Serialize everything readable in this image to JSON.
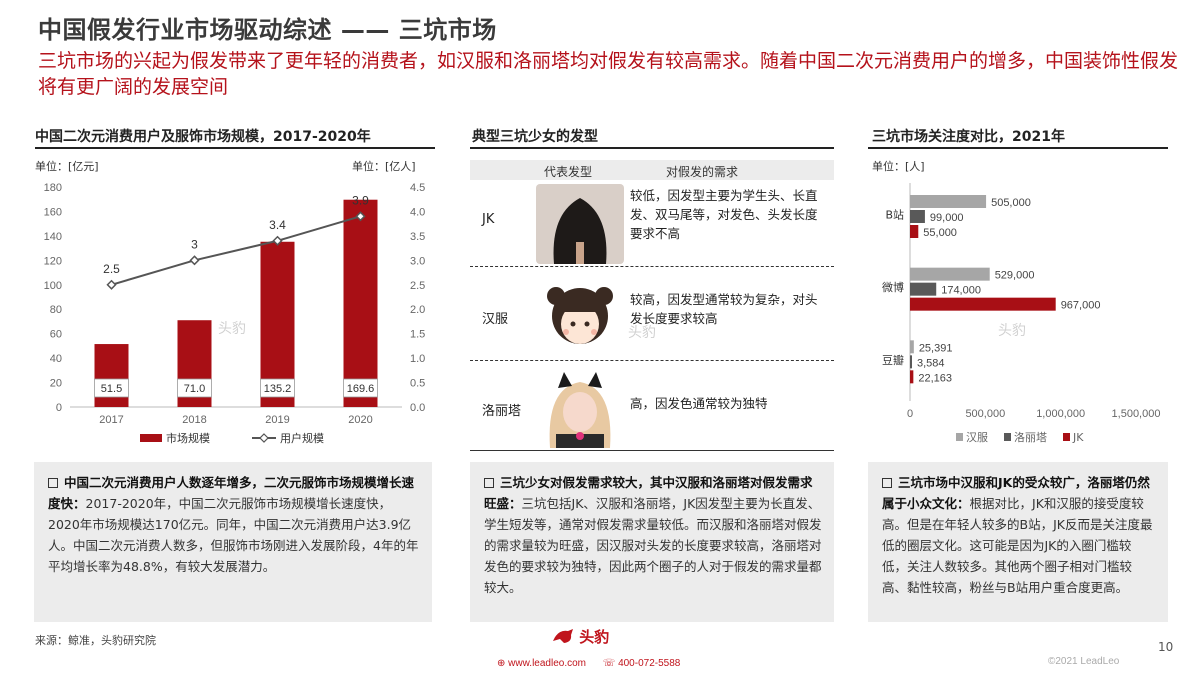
{
  "header": {
    "title": "中国假发行业市场驱动综述 —— 三坑市场",
    "subtitle": "三坑市场的兴起为假发带来了更年轻的消费者，如汉服和洛丽塔均对假发有较高需求。随着中国二次元消费用户的增多，中国装饰性假发将有更广阔的发展空间"
  },
  "left": {
    "section_title": "中国二次元消费用户及服饰市场规模，2017-2020年",
    "unit_left": "单位：[亿元]",
    "unit_right": "单位：[亿人]",
    "note_bold": "中国二次元消费用户人数逐年增多，二次元服饰市场规模增长速度快：",
    "note_text": "2017-2020年，中国二次元服饰市场规模增长速度快，2020年市场规模达170亿元。同年，中国二次元消费用户达3.9亿人。中国二次元消费人数多，但服饰市场刚进入发展阶段，4年的年平均增长率为48.8%，有较大发展潜力。"
  },
  "middle": {
    "section_title": "典型三坑少女的发型",
    "col_hair": "代表发型",
    "col_need": "对假发的需求",
    "rows": [
      {
        "type": "JK",
        "desc": "较低，因发型主要为学生头、长直发、双马尾等，对发色、头发长度要求不高"
      },
      {
        "type": "汉服",
        "desc": "较高，因发型通常较为复杂，对头发长度要求较高"
      },
      {
        "type": "洛丽塔",
        "desc": "高，因发色通常较为独特"
      }
    ],
    "note_bold": "三坑少女对假发需求较大，其中汉服和洛丽塔对假发需求旺盛：",
    "note_text": "三坑包括JK、汉服和洛丽塔，JK因发型主要为长直发、学生短发等，通常对假发需求量较低。而汉服和洛丽塔对假发的需求量较为旺盛，因汉服对头发的长度要求较高，洛丽塔对发色的要求较为独特，因此两个圈子的人对于假发的需求量都较大。"
  },
  "right": {
    "section_title": "三坑市场关注度对比，2021年",
    "unit": "单位：[人]",
    "note_bold": "三坑市场中汉服和JK的受众较广，洛丽塔仍然属于小众文化：",
    "note_text": "根据对比，JK和汉服的接受度较高。但是在年轻人较多的B站，JK反而是关注度最低的圈层文化。这可能是因为JK的入圈门槛较低，关注人数较多。其他两个圈子相对门槛较高、黏性较高，粉丝与B站用户重合度更高。"
  },
  "chart_data": [
    {
      "type": "bar",
      "categories": [
        "2017",
        "2018",
        "2019",
        "2020"
      ],
      "series": [
        {
          "name": "市场规模",
          "values": [
            51.5,
            71.0,
            135.2,
            169.6
          ],
          "axis": "left",
          "color": "#a80f15"
        },
        {
          "name": "用户规模",
          "values": [
            2.5,
            3,
            3.4,
            3.9
          ],
          "axis": "right",
          "kind": "line",
          "color": "#555555"
        }
      ],
      "bar_labels": [
        "51.5",
        "71.0",
        "135.2",
        "169.6"
      ],
      "line_labels": [
        "2.5",
        "3",
        "3.4",
        "3.9"
      ],
      "ylim": [
        0,
        180
      ],
      "yticks": [
        "0",
        "20",
        "40",
        "60",
        "80",
        "100",
        "120",
        "140",
        "160",
        "180"
      ],
      "y2lim": [
        0,
        4.5
      ],
      "y2ticks": [
        "0.0",
        "0.5",
        "1.0",
        "1.5",
        "2.0",
        "2.5",
        "3.0",
        "3.5",
        "4.0",
        "4.5"
      ],
      "legend": "bottom"
    },
    {
      "type": "bar",
      "orientation": "horizontal",
      "categories": [
        "B站",
        "微博",
        "豆瓣"
      ],
      "series": [
        {
          "name": "汉服",
          "values": [
            505000,
            529000,
            25391
          ],
          "labels": [
            "505,000",
            "529,000",
            "25,391"
          ],
          "color": "#a6a6a6"
        },
        {
          "name": "洛丽塔",
          "values": [
            99000,
            174000,
            3584
          ],
          "labels": [
            "99,000",
            "174,000",
            "3,584"
          ],
          "color": "#595959"
        },
        {
          "name": "JK",
          "values": [
            55000,
            967000,
            22163
          ],
          "labels": [
            "55,000",
            "967,000",
            "22,163"
          ],
          "color": "#a80f15"
        }
      ],
      "xlim": [
        0,
        1500000
      ],
      "xticks": [
        "0",
        "500,000",
        "1,000,000",
        "1,500,000"
      ],
      "legend": "bottom"
    }
  ],
  "footer": {
    "source": "来源：鲸准，头豹研究院",
    "logo_text": "头豹",
    "website": "www.leadleo.com",
    "phone": "400-072-5588",
    "page": "10",
    "copyright": "©2021 LeadLeo",
    "watermark": "头豹"
  }
}
